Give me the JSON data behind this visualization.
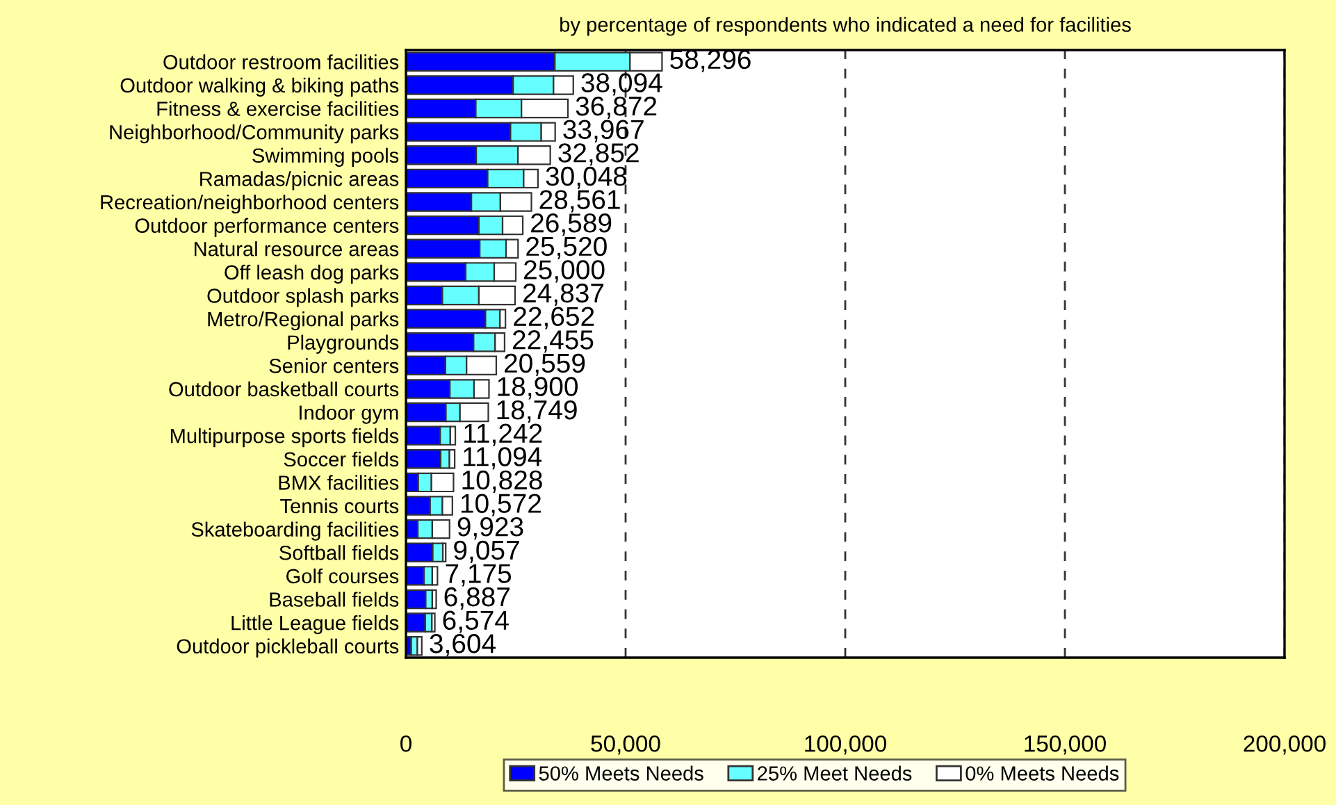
{
  "chart_data": {
    "type": "bar",
    "orientation": "horizontal",
    "stacked": true,
    "title": "by percentage of respondents who indicated a need for facilities",
    "categories": [
      "Outdoor restroom facilities",
      "Outdoor walking & biking paths",
      "Fitness & exercise facilities",
      "Neighborhood/Community parks",
      "Swimming pools",
      "Ramadas/picnic areas",
      "Recreation/neighborhood centers",
      "Outdoor performance centers",
      "Natural resource areas",
      "Off leash dog parks",
      "Outdoor splash parks",
      "Metro/Regional parks",
      "Playgrounds",
      "Senior centers",
      "Outdoor basketball courts",
      "Indoor gym",
      "Multipurpose sports fields",
      "Soccer fields",
      "BMX facilities",
      "Tennis courts",
      "Skateboarding facilities",
      "Softball fields",
      "Golf courses",
      "Baseball fields",
      "Little League fields",
      "Outdoor pickleball courts"
    ],
    "series": [
      {
        "name": "50% Meets Needs",
        "color": "#0000ff",
        "values": [
          33900,
          24400,
          15900,
          23800,
          16000,
          18600,
          14900,
          16600,
          16800,
          13600,
          8300,
          18100,
          15400,
          9000,
          10000,
          9100,
          7800,
          7900,
          2800,
          5500,
          2700,
          6100,
          4100,
          4500,
          4400,
          1200
        ]
      },
      {
        "name": "25% Meet Needs",
        "color": "#66ffff",
        "values": [
          17100,
          9200,
          10400,
          7000,
          9500,
          8200,
          6600,
          5400,
          6000,
          6500,
          8300,
          3300,
          4900,
          4800,
          5500,
          3200,
          2300,
          2000,
          3000,
          2800,
          3300,
          2300,
          1900,
          1500,
          1500,
          1400
        ]
      },
      {
        "name": "0% Meets Needs",
        "color": "#ffffff",
        "values": [
          7296,
          4494,
          10572,
          3167,
          7352,
          3248,
          7061,
          4589,
          2720,
          4900,
          8237,
          1252,
          2155,
          6759,
          3400,
          6449,
          1142,
          1194,
          5028,
          2272,
          3923,
          657,
          1175,
          887,
          674,
          1004
        ]
      }
    ],
    "totals": [
      "58,296",
      "38,094",
      "36,872",
      "33,967",
      "32,852",
      "30,048",
      "28,561",
      "26,589",
      "25,520",
      "25,000",
      "24,837",
      "22,652",
      "22,455",
      "20,559",
      "18,900",
      "18,749",
      "11,242",
      "11,094",
      "10,828",
      "10,572",
      "9,923",
      "9,057",
      "7,175",
      "6,887",
      "6,574",
      "3,604"
    ],
    "xlim": [
      0,
      200000
    ],
    "xticks": [
      {
        "value": 0,
        "label": "0"
      },
      {
        "value": 50000,
        "label": "50,000"
      },
      {
        "value": 100000,
        "label": "100,000"
      },
      {
        "value": 150000,
        "label": "150,000"
      },
      {
        "value": 200000,
        "label": "200,000"
      }
    ],
    "grid": "x",
    "legend": "bottom"
  }
}
